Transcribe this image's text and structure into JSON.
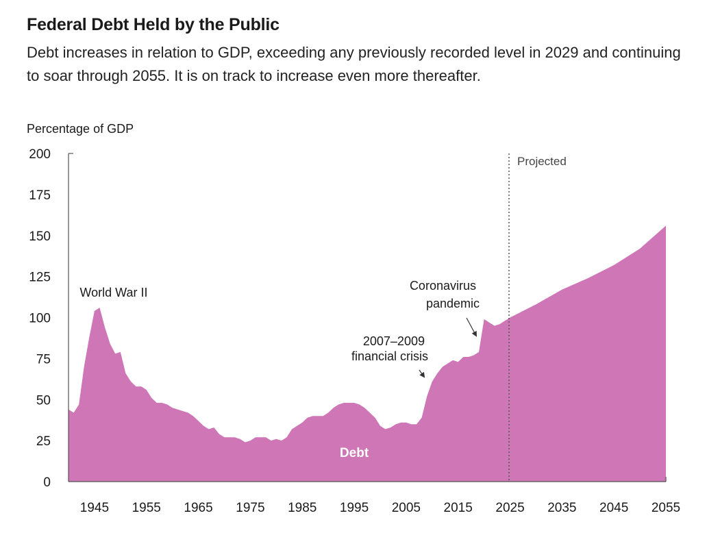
{
  "header": {
    "title": "Federal Debt Held by the Public",
    "subtitle": "Debt increases in relation to GDP, exceeding any previously recorded level in 2029 and continuing to soar through 2055. It is on track to increase even more thereafter."
  },
  "colors": {
    "area": "#cf77b6",
    "axis": "#555555",
    "divider": "#555555"
  },
  "chart_data": {
    "type": "area",
    "title": "Federal Debt Held by the Public",
    "ylabel": "Percentage of GDP",
    "xlabel": "",
    "ylim": [
      0,
      200
    ],
    "xlim": [
      1940,
      2055
    ],
    "yticks": [
      "0",
      "25",
      "50",
      "75",
      "100",
      "125",
      "150",
      "175",
      "200"
    ],
    "xticks": [
      "1945",
      "1955",
      "1965",
      "1975",
      "1985",
      "1995",
      "2005",
      "2015",
      "2025",
      "2035",
      "2045",
      "2055"
    ],
    "series": [
      {
        "name": "Debt",
        "points": [
          [
            1940,
            44
          ],
          [
            1941,
            42
          ],
          [
            1942,
            47
          ],
          [
            1943,
            70
          ],
          [
            1944,
            88
          ],
          [
            1945,
            104
          ],
          [
            1946,
            106
          ],
          [
            1947,
            94
          ],
          [
            1948,
            84
          ],
          [
            1949,
            78
          ],
          [
            1950,
            79
          ],
          [
            1951,
            66
          ],
          [
            1952,
            61
          ],
          [
            1953,
            58
          ],
          [
            1954,
            58
          ],
          [
            1955,
            56
          ],
          [
            1956,
            51
          ],
          [
            1957,
            48
          ],
          [
            1958,
            48
          ],
          [
            1959,
            47
          ],
          [
            1960,
            45
          ],
          [
            1961,
            44
          ],
          [
            1962,
            43
          ],
          [
            1963,
            42
          ],
          [
            1964,
            40
          ],
          [
            1965,
            37
          ],
          [
            1966,
            34
          ],
          [
            1967,
            32
          ],
          [
            1968,
            33
          ],
          [
            1969,
            29
          ],
          [
            1970,
            27
          ],
          [
            1971,
            27
          ],
          [
            1972,
            27
          ],
          [
            1973,
            26
          ],
          [
            1974,
            24
          ],
          [
            1975,
            25
          ],
          [
            1976,
            27
          ],
          [
            1977,
            27
          ],
          [
            1978,
            27
          ],
          [
            1979,
            25
          ],
          [
            1980,
            26
          ],
          [
            1981,
            25
          ],
          [
            1982,
            27
          ],
          [
            1983,
            32
          ],
          [
            1984,
            34
          ],
          [
            1985,
            36
          ],
          [
            1986,
            39
          ],
          [
            1987,
            40
          ],
          [
            1988,
            40
          ],
          [
            1989,
            40
          ],
          [
            1990,
            42
          ],
          [
            1991,
            45
          ],
          [
            1992,
            47
          ],
          [
            1993,
            48
          ],
          [
            1994,
            48
          ],
          [
            1995,
            48
          ],
          [
            1996,
            47
          ],
          [
            1997,
            45
          ],
          [
            1998,
            42
          ],
          [
            1999,
            39
          ],
          [
            2000,
            34
          ],
          [
            2001,
            32
          ],
          [
            2002,
            33
          ],
          [
            2003,
            35
          ],
          [
            2004,
            36
          ],
          [
            2005,
            36
          ],
          [
            2006,
            35
          ],
          [
            2007,
            35
          ],
          [
            2008,
            39
          ],
          [
            2009,
            52
          ],
          [
            2010,
            61
          ],
          [
            2011,
            66
          ],
          [
            2012,
            70
          ],
          [
            2013,
            72
          ],
          [
            2014,
            74
          ],
          [
            2015,
            73
          ],
          [
            2016,
            76
          ],
          [
            2017,
            76
          ],
          [
            2018,
            77
          ],
          [
            2019,
            79
          ],
          [
            2020,
            99
          ],
          [
            2021,
            97
          ],
          [
            2022,
            95
          ],
          [
            2023,
            96
          ],
          [
            2024,
            98
          ],
          [
            2025,
            100
          ],
          [
            2030,
            108
          ],
          [
            2035,
            117
          ],
          [
            2040,
            124
          ],
          [
            2045,
            132
          ],
          [
            2050,
            142
          ],
          [
            2055,
            156
          ]
        ]
      }
    ],
    "projection_start": 2024.8,
    "projection_label": "Projected",
    "series_label": "Debt",
    "annotations": [
      {
        "lines": [
          "World War II"
        ]
      },
      {
        "lines": [
          "Coronavirus",
          "pandemic"
        ]
      },
      {
        "lines": [
          "2007–2009",
          "financial crisis"
        ]
      }
    ]
  }
}
